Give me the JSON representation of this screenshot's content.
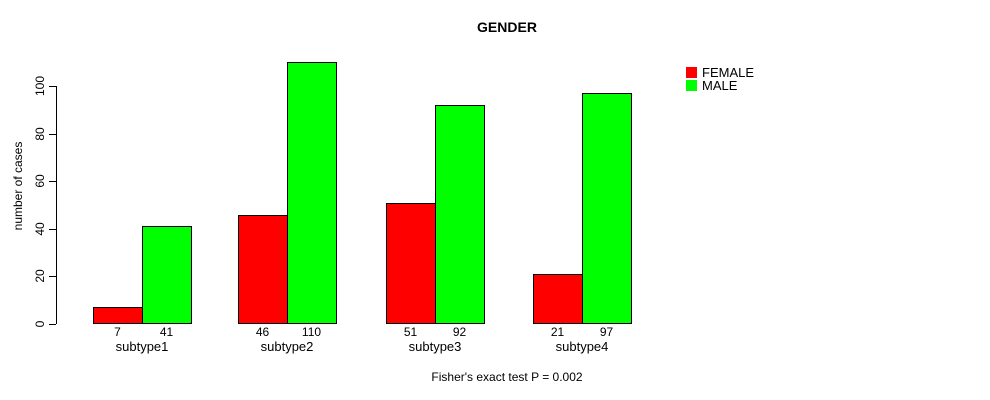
{
  "chart_data": {
    "type": "bar",
    "title": "GENDER",
    "ylabel": "number of cases",
    "xlabel": "",
    "categories": [
      "subtype1",
      "subtype2",
      "subtype3",
      "subtype4"
    ],
    "series": [
      {
        "name": "FEMALE",
        "color": "#ff0000",
        "values": [
          7,
          46,
          51,
          21
        ]
      },
      {
        "name": "MALE",
        "color": "#00ff00",
        "values": [
          41,
          110,
          92,
          97
        ]
      }
    ],
    "yticks": [
      0,
      20,
      40,
      60,
      80,
      100
    ],
    "ylim": [
      0,
      114
    ],
    "grid": false,
    "value_labels_shown": true,
    "legend_position": "outside-top-right",
    "annotation": "Fisher's exact test P = 0.002"
  }
}
